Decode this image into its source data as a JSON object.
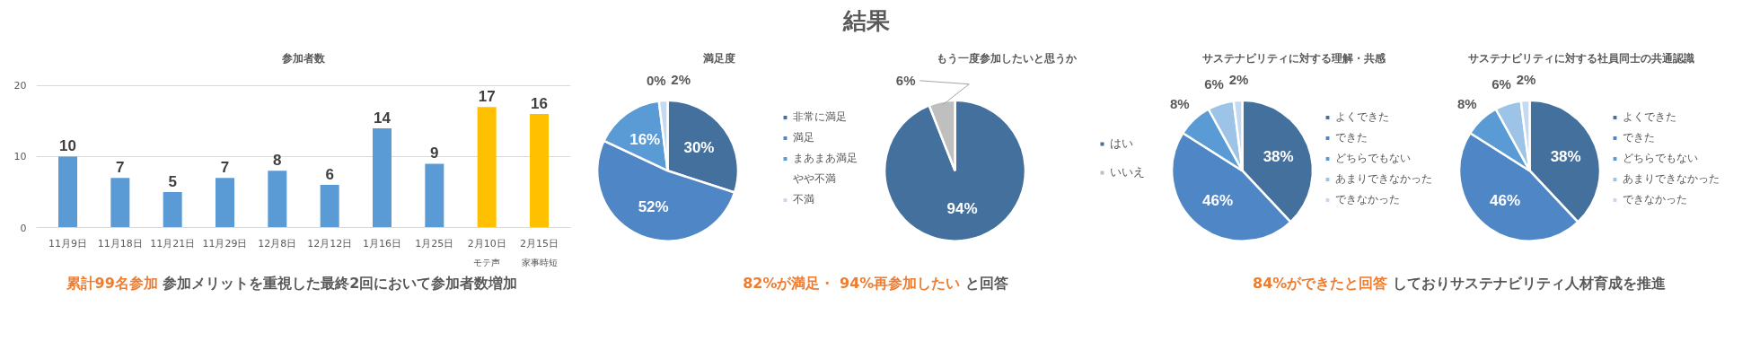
{
  "chart_data": [
    {
      "type": "bar",
      "title": "参加者数",
      "categories": [
        "11月9日",
        "11月18日",
        "11月21日",
        "11月29日",
        "12月8日",
        "12月12日",
        "1月16日",
        "1月25日",
        "2月10日",
        "2月15日"
      ],
      "values": [
        10,
        7,
        5,
        7,
        8,
        6,
        14,
        9,
        17,
        16
      ],
      "colors": [
        "#5b9bd5",
        "#5b9bd5",
        "#5b9bd5",
        "#5b9bd5",
        "#5b9bd5",
        "#5b9bd5",
        "#5b9bd5",
        "#5b9bd5",
        "#ffc000",
        "#ffc000"
      ],
      "ylim": [
        0,
        20
      ],
      "yticks": [
        0,
        10,
        20
      ],
      "grid": "y",
      "data_labels": true,
      "annotations": [
        "モテ声",
        "家事時短"
      ]
    },
    {
      "type": "pie",
      "title": "満足度",
      "categories": [
        "非常に満足",
        "満足",
        "まあまあ満足",
        "やや不満",
        "不満"
      ],
      "values": [
        30,
        52,
        16,
        0,
        2
      ],
      "value_labels": [
        "30%",
        "52%",
        "16%",
        "0%",
        "2%"
      ],
      "colors": [
        "#44709d",
        "#4f86c5",
        "#5b9bd5",
        "#8fb4e3",
        "#c5d9f0"
      ],
      "legend": "right"
    },
    {
      "type": "pie",
      "title": "もう一度参加したいと思うか",
      "categories": [
        "はい",
        "いいえ"
      ],
      "values": [
        94,
        6
      ],
      "value_labels": [
        "94%",
        "6%"
      ],
      "colors": [
        "#44709d",
        "#bfbfbf"
      ],
      "legend": "right"
    },
    {
      "type": "pie",
      "title": "サステナビリティに対する理解・共感",
      "categories": [
        "よくできた",
        "できた",
        "どちらでもない",
        "あまりできなかった",
        "できなかった"
      ],
      "values": [
        38,
        46,
        8,
        6,
        2
      ],
      "value_labels": [
        "38%",
        "46%",
        "8%",
        "6%",
        "2%"
      ],
      "colors": [
        "#44709d",
        "#4f86c5",
        "#5b9bd5",
        "#9dc3e6",
        "#c5d9f0"
      ],
      "legend": "right"
    },
    {
      "type": "pie",
      "title": "サステナビリティに対する社員同士の共通認識",
      "categories": [
        "よくできた",
        "できた",
        "どちらでもない",
        "あまりできなかった",
        "できなかった"
      ],
      "values": [
        38,
        46,
        8,
        6,
        2
      ],
      "value_labels": [
        "38%",
        "46%",
        "8%",
        "6%",
        "2%"
      ],
      "colors": [
        "#44709d",
        "#4f86c5",
        "#5b9bd5",
        "#9dc3e6",
        "#c5d9f0"
      ],
      "legend": "right"
    },
    {
      "type": "other",
      "title": "結果",
      "annotations": [
        "累計99名参加",
        "参加メリットを重視した最終2回において参加者数増加",
        "82%が満足・ 94%再参加したい",
        "と回答",
        "84%ができたと回答",
        "しておりサステナビリティ人材育成を推進"
      ]
    }
  ]
}
